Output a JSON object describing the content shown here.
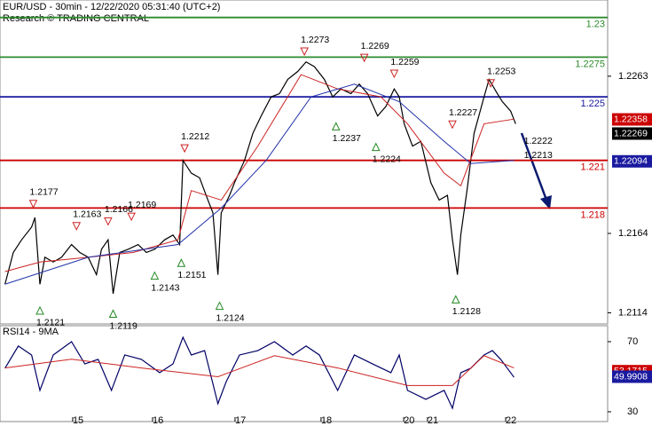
{
  "chart_data": [
    {
      "type": "price",
      "title": "EUR/USD - 30min - 12/22/2020 05:31:40 (UTC+2)",
      "subtitle": "Research © TRADING CENTRAL",
      "xlim": [
        0,
        365.3
      ],
      "ylim": [
        1.2107,
        1.2311
      ],
      "yticks": [
        1.2263,
        1.2164,
        1.2114
      ],
      "series": [
        {
          "color": "#000000",
          "x": [
            3,
            8,
            13,
            19,
            21,
            24,
            27,
            32,
            37,
            43,
            48,
            53,
            58,
            61,
            65,
            68,
            72,
            77,
            83,
            88,
            93,
            99,
            104,
            108,
            110,
            115,
            120,
            125,
            128,
            131,
            133,
            138,
            141,
            147,
            152,
            157,
            163,
            168,
            173,
            179,
            184,
            189,
            195,
            200,
            205,
            211,
            216,
            221,
            227,
            232,
            237,
            240,
            243,
            248,
            253,
            259,
            264,
            269,
            272,
            275,
            277,
            281,
            285,
            291,
            294,
            299,
            302,
            307,
            310
          ],
          "values": [
            1.2132,
            1.2152,
            1.216,
            1.2168,
            1.2174,
            1.2132,
            1.2149,
            1.2146,
            1.2149,
            1.2157,
            1.2152,
            1.2149,
            1.2138,
            1.2154,
            1.216,
            1.2126,
            1.2152,
            1.2154,
            1.2157,
            1.2152,
            1.2154,
            1.216,
            1.2163,
            1.2157,
            1.221,
            1.2202,
            1.2199,
            1.2185,
            1.2177,
            1.2138,
            1.2177,
            1.2188,
            1.2196,
            1.221,
            1.2227,
            1.2238,
            1.225,
            1.2252,
            1.2261,
            1.2266,
            1.2272,
            1.2269,
            1.2261,
            1.225,
            1.2255,
            1.2252,
            1.2258,
            1.2252,
            1.2238,
            1.2244,
            1.2255,
            1.225,
            1.2233,
            1.2219,
            1.2222,
            1.2196,
            1.2185,
            1.2188,
            1.216,
            1.2138,
            1.2163,
            1.2193,
            1.2227,
            1.225,
            1.2261,
            1.2252,
            1.2247,
            1.2241,
            1.2233
          ]
        },
        {
          "color": "#cc2222",
          "x": [
            3,
            24,
            53,
            80,
            107,
            115,
            133,
            155,
            181,
            203,
            229,
            245,
            267,
            277,
            291,
            309
          ],
          "values": [
            1.214,
            1.2146,
            1.2149,
            1.2152,
            1.216,
            1.2191,
            1.2185,
            1.2219,
            1.2264,
            1.2255,
            1.225,
            1.2233,
            1.2202,
            1.2194,
            1.2233,
            1.2236
          ]
        },
        {
          "color": "#2233aa",
          "x": [
            3,
            53,
            107,
            133,
            160,
            187,
            213,
            240,
            267,
            283,
            309
          ],
          "values": [
            1.2132,
            1.2149,
            1.2157,
            1.218,
            1.221,
            1.225,
            1.2258,
            1.2247,
            1.2222,
            1.2208,
            1.221
          ]
        }
      ],
      "levels": [
        {
          "value": 1.23,
          "color": "#2e8b2e"
        },
        {
          "value": 1.2275,
          "color": "#2e8b2e"
        },
        {
          "value": 1.225,
          "color": "#1a1aa0"
        },
        {
          "value": 1.221,
          "color": "#cc0000"
        },
        {
          "value": 1.218,
          "color": "#cc0000"
        }
      ],
      "highs": {
        "color": "#cc2222",
        "x": [
          20,
          46,
          65,
          79,
          111,
          183,
          219,
          237,
          272,
          295
        ],
        "values": [
          1.2177,
          1.2163,
          1.2166,
          1.2169,
          1.2212,
          1.2273,
          1.2269,
          1.2259,
          1.2227,
          1.2253
        ]
      },
      "lows": {
        "color": "#228822",
        "x": [
          24,
          68,
          93,
          109,
          132,
          202,
          226,
          274
        ],
        "values": [
          1.2121,
          1.2119,
          1.2143,
          1.2151,
          1.2124,
          1.2237,
          1.2224,
          1.2128
        ]
      },
      "annotations": {
        "x": [
          315,
          315
        ],
        "values": [
          1.2213,
          1.2222
        ]
      },
      "value_boxes": [
        {
          "value": 1.22358,
          "color": "#cc0000"
        },
        {
          "value": 1.22269,
          "color": "#000000"
        },
        {
          "value": 1.22094,
          "color": "#1a1aa0"
        }
      ]
    },
    {
      "type": "rsi",
      "title": "RSI14 - 9MA",
      "xlim": [
        0,
        365.3
      ],
      "ylim": [
        24.4,
        79.1
      ],
      "yticks": [
        70,
        30
      ],
      "xticks": [
        {
          "value": 43.7,
          "label": "15"
        },
        {
          "value": 91.7,
          "label": "16"
        },
        {
          "value": 141.3,
          "label": "17"
        },
        {
          "value": 193,
          "label": "18"
        },
        {
          "value": 242.7,
          "label": "20"
        },
        {
          "value": 257,
          "label": "21"
        },
        {
          "value": 304,
          "label": "22"
        }
      ],
      "series": [
        {
          "color": "#000066",
          "x": [
            3,
            11,
            19,
            24,
            32,
            43,
            51,
            59,
            67,
            75,
            85,
            96,
            104,
            110,
            115,
            123,
            131,
            136,
            144,
            155,
            165,
            176,
            184,
            192,
            203,
            213,
            224,
            235,
            240,
            245,
            256,
            267,
            272,
            277,
            283,
            291,
            296,
            301,
            309
          ],
          "values": [
            54.8,
            67.5,
            62.4,
            42.2,
            62.4,
            70,
            57.3,
            59.9,
            42.2,
            62.4,
            59.9,
            52.3,
            57.3,
            72.5,
            62.4,
            64.9,
            34.6,
            47.2,
            62.4,
            64.9,
            70,
            62.4,
            67.5,
            62.4,
            42.2,
            62.4,
            57.3,
            52.3,
            62.4,
            42.2,
            37.1,
            42.2,
            32,
            52.3,
            54.8,
            62.4,
            64.9,
            59.9,
            49.7
          ]
        },
        {
          "color": "#cc2222",
          "x": [
            3,
            43,
            85,
            131,
            165,
            203,
            245,
            272,
            291,
            309
          ],
          "values": [
            55,
            60,
            55,
            50,
            62,
            55,
            45,
            45,
            62,
            55
          ]
        }
      ],
      "value_boxes": [
        {
          "value": 53.1715,
          "color": "#cc0000"
        },
        {
          "value": 49.9908,
          "color": "#1a1aa0"
        }
      ]
    }
  ]
}
